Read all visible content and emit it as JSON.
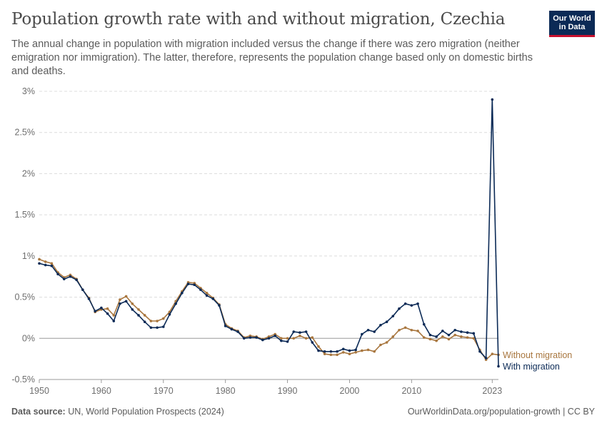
{
  "header": {
    "title": "Population growth rate with and without migration, Czechia",
    "subtitle": "The annual change in population with migration included versus the change if there was zero migration (neither emigration nor immigration). The latter, therefore, represents the population change based only on domestic births and deaths."
  },
  "logo": {
    "line1": "Our World",
    "line2": "in Data"
  },
  "footer": {
    "source_label": "Data source:",
    "source_text": "UN, World Population Prospects (2024)",
    "url": "OurWorldinData.org/population-growth | CC BY"
  },
  "colors": {
    "with_migration": "#0b2a56",
    "without_migration": "#a8763e",
    "grid": "#dcdcdc",
    "zero_line": "#9a9a9a"
  },
  "chart_data": {
    "type": "line",
    "title": "Population growth rate with and without migration, Czechia",
    "xlabel": "",
    "ylabel": "",
    "x_tick_labels": [
      "1950",
      "1960",
      "1970",
      "1980",
      "1990",
      "2000",
      "2010",
      "2023"
    ],
    "y_tick_labels": [
      "-0.5%",
      "0%",
      "0.5%",
      "1%",
      "1.5%",
      "2%",
      "2.5%",
      "3%"
    ],
    "xlim": [
      1950,
      2024
    ],
    "ylim": [
      -0.5,
      3
    ],
    "grid": "horizontal dashed",
    "legend": "inline labels at line ends (right)",
    "x": [
      1950,
      1951,
      1952,
      1953,
      1954,
      1955,
      1956,
      1957,
      1958,
      1959,
      1960,
      1961,
      1962,
      1963,
      1964,
      1965,
      1966,
      1967,
      1968,
      1969,
      1970,
      1971,
      1972,
      1973,
      1974,
      1975,
      1976,
      1977,
      1978,
      1979,
      1980,
      1981,
      1982,
      1983,
      1984,
      1985,
      1986,
      1987,
      1988,
      1989,
      1990,
      1991,
      1992,
      1993,
      1994,
      1995,
      1996,
      1997,
      1998,
      1999,
      2000,
      2001,
      2002,
      2003,
      2004,
      2005,
      2006,
      2007,
      2008,
      2009,
      2010,
      2011,
      2012,
      2013,
      2014,
      2015,
      2016,
      2017,
      2018,
      2019,
      2020,
      2021,
      2022,
      2023,
      2024
    ],
    "series": [
      {
        "name": "Without migration",
        "values": [
          0.96,
          0.93,
          0.91,
          0.8,
          0.74,
          0.77,
          0.72,
          0.59,
          0.49,
          0.32,
          0.35,
          0.36,
          0.28,
          0.47,
          0.51,
          0.42,
          0.35,
          0.28,
          0.21,
          0.21,
          0.24,
          0.32,
          0.45,
          0.57,
          0.68,
          0.67,
          0.61,
          0.55,
          0.49,
          0.41,
          0.17,
          0.12,
          0.09,
          0.01,
          0.03,
          0.02,
          -0.01,
          0.02,
          0.05,
          0.0,
          0.0,
          0.0,
          0.03,
          0.0,
          0.01,
          -0.1,
          -0.19,
          -0.2,
          -0.2,
          -0.17,
          -0.19,
          -0.17,
          -0.15,
          -0.14,
          -0.16,
          -0.08,
          -0.05,
          0.02,
          0.1,
          0.13,
          0.1,
          0.09,
          0.01,
          -0.01,
          -0.03,
          0.02,
          -0.01,
          0.04,
          0.02,
          0.01,
          0.0,
          -0.14,
          -0.26,
          -0.19,
          -0.2
        ]
      },
      {
        "name": "With migration",
        "values": [
          0.91,
          0.89,
          0.88,
          0.78,
          0.72,
          0.75,
          0.71,
          0.59,
          0.48,
          0.33,
          0.37,
          0.3,
          0.21,
          0.42,
          0.45,
          0.35,
          0.28,
          0.2,
          0.13,
          0.13,
          0.14,
          0.29,
          0.42,
          0.55,
          0.66,
          0.65,
          0.59,
          0.52,
          0.48,
          0.4,
          0.15,
          0.11,
          0.08,
          0.0,
          0.01,
          0.01,
          -0.02,
          0.0,
          0.03,
          -0.03,
          -0.04,
          0.08,
          0.07,
          0.08,
          -0.05,
          -0.15,
          -0.16,
          -0.16,
          -0.16,
          -0.13,
          -0.15,
          -0.14,
          0.05,
          0.1,
          0.08,
          0.16,
          0.2,
          0.27,
          0.36,
          0.42,
          0.4,
          0.42,
          0.17,
          0.04,
          0.02,
          0.09,
          0.04,
          0.1,
          0.08,
          0.07,
          0.06,
          -0.16,
          -0.24,
          2.9,
          -0.34
        ]
      }
    ]
  }
}
